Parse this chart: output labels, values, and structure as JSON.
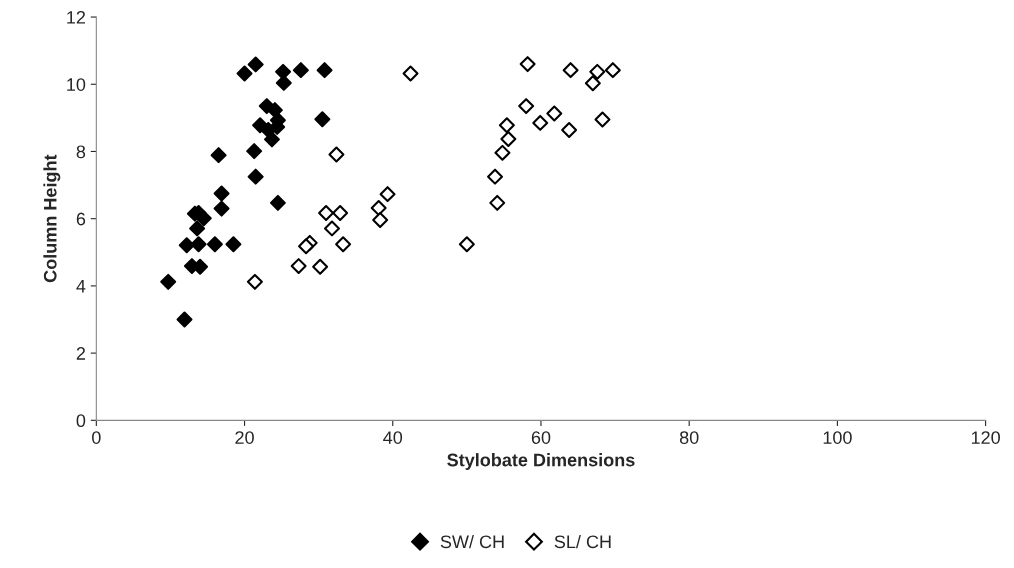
{
  "chart_data": {
    "type": "scatter",
    "xlabel": "Stylobate Dimensions",
    "ylabel": "Column Height",
    "xlim": [
      0,
      120
    ],
    "xticks": [
      0,
      20,
      40,
      60,
      80,
      100,
      120
    ],
    "ylim": [
      0,
      12
    ],
    "yticks": [
      0,
      2,
      4,
      6,
      8,
      10,
      12
    ],
    "grid": false,
    "legend": "bottom",
    "marker": "diamond",
    "series": [
      {
        "name": "SW/ CH",
        "color": "#000000",
        "x": [
          21.5,
          20.0,
          25.2,
          25.3,
          27.6,
          30.8,
          23.0,
          24.1,
          22.1,
          23.2,
          24.4,
          24.5,
          23.7,
          30.5,
          16.5,
          21.3,
          21.5,
          24.5,
          16.9,
          16.9,
          13.8,
          13.3,
          14.5,
          13.6,
          12.2,
          13.8,
          16.0,
          18.5,
          12.9,
          14.0,
          9.7,
          11.9
        ],
        "values": [
          10.59,
          10.32,
          10.37,
          10.04,
          10.42,
          10.42,
          9.35,
          9.23,
          8.78,
          8.64,
          8.73,
          8.93,
          8.36,
          8.96,
          7.89,
          8.01,
          7.25,
          6.47,
          6.75,
          6.3,
          6.17,
          6.15,
          6.01,
          5.71,
          5.21,
          5.24,
          5.24,
          5.24,
          4.59,
          4.57,
          4.12,
          3.0
        ]
      },
      {
        "name": "SL/ CH",
        "color": "#000000",
        "x": [
          32.4,
          21.4,
          42.4,
          39.3,
          38.1,
          38.3,
          31.0,
          32.9,
          31.8,
          28.8,
          28.3,
          33.3,
          27.3,
          30.2,
          50.0,
          58.2,
          64.0,
          67.6,
          69.7,
          67.0,
          58.0,
          61.8,
          59.9,
          63.8,
          68.3,
          55.4,
          55.6,
          54.8,
          53.8,
          54.1
        ],
        "values": [
          7.91,
          4.12,
          10.32,
          6.73,
          6.32,
          5.96,
          6.17,
          6.17,
          5.71,
          5.28,
          5.18,
          5.24,
          4.59,
          4.57,
          5.24,
          10.6,
          10.42,
          10.37,
          10.42,
          10.03,
          9.35,
          9.13,
          8.85,
          8.64,
          8.95,
          8.78,
          8.37,
          7.96,
          7.25,
          6.47
        ]
      }
    ]
  }
}
